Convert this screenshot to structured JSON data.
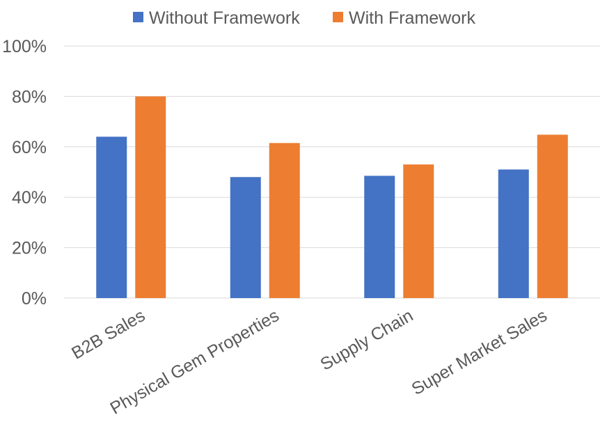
{
  "chart_data": {
    "type": "bar",
    "categories": [
      "B2B Sales",
      "Physical Gem Properties",
      "Supply Chain",
      "Super Market Sales"
    ],
    "series": [
      {
        "name": "Without Framework",
        "color": "#4472c4",
        "values": [
          64,
          48,
          48.5,
          51
        ]
      },
      {
        "name": "With Framework",
        "color": "#ed7d31",
        "values": [
          80,
          61.5,
          53,
          64.8
        ]
      }
    ],
    "ylim": [
      0,
      100
    ],
    "yticks": [
      "0%",
      "20%",
      "40%",
      "60%",
      "80%",
      "100%"
    ],
    "ytick_values": [
      0,
      20,
      40,
      60,
      80,
      100
    ],
    "grid": true,
    "legend_position": "top"
  }
}
